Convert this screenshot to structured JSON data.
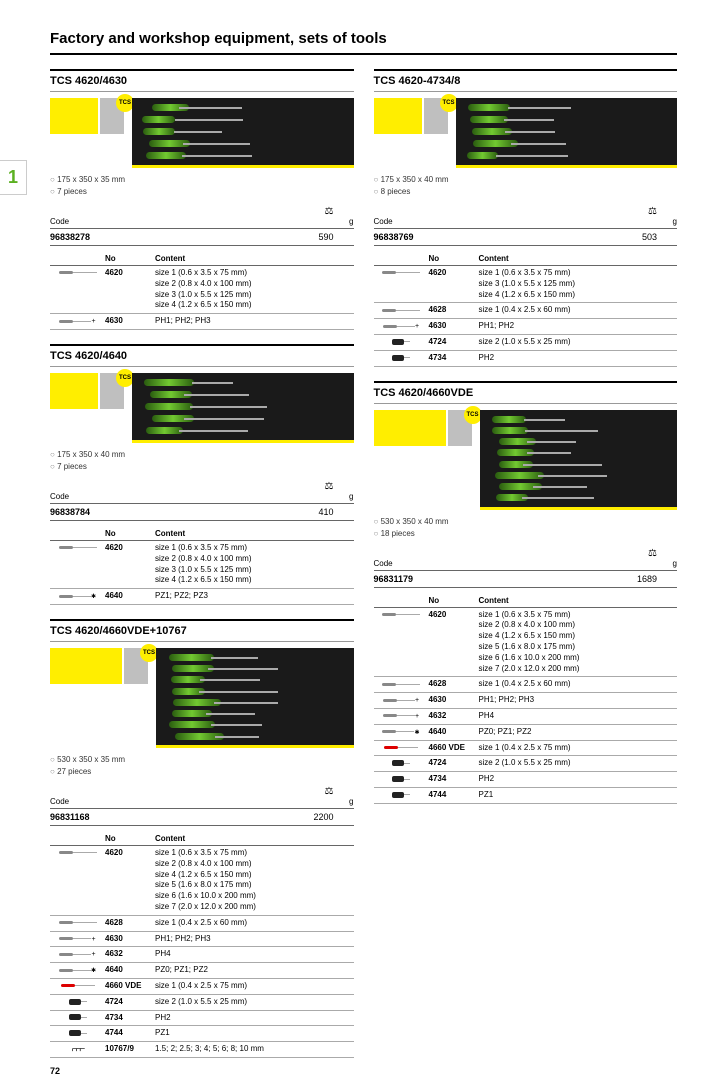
{
  "tab_number": "1",
  "page_number": "72",
  "page_title": "Factory and workshop equipment, sets of tools",
  "label_code": "Code",
  "label_g": "g",
  "label_no": "No",
  "label_content": "Content",
  "tcs_badge": "TCS",
  "colors": {
    "brand": "#ffee00",
    "accent": "#72c931",
    "dark": "#1a1a1a"
  },
  "sections": [
    {
      "col": 0,
      "title": "TCS 4620/4630",
      "yellow_width": 48,
      "specs": [
        "175 x 350 x 35 mm",
        "7 pieces"
      ],
      "code": "96838278",
      "weight": "590",
      "rows": [
        {
          "icon": "flat",
          "no": "4620",
          "content": "size 1 (0.6 x 3.5 x 75 mm)\nsize 2 (0.8 x 4.0 x 100 mm)\nsize 3 (1.0 x 5.5 x 125 mm)\nsize 4 (1.2 x 6.5 x 150 mm)"
        },
        {
          "icon": "ph",
          "no": "4630",
          "content": "PH1; PH2; PH3"
        }
      ]
    },
    {
      "col": 0,
      "title": "TCS 4620/4640",
      "yellow_width": 48,
      "specs": [
        "175 x 350 x 40 mm",
        "7 pieces"
      ],
      "code": "96838784",
      "weight": "410",
      "rows": [
        {
          "icon": "flat",
          "no": "4620",
          "content": "size 1 (0.6 x 3.5 x 75 mm)\nsize 2 (0.8 x 4.0 x 100 mm)\nsize 3 (1.0 x 5.5 x 125 mm)\nsize 4 (1.2 x 6.5 x 150 mm)"
        },
        {
          "icon": "pz",
          "no": "4640",
          "content": "PZ1; PZ2; PZ3"
        }
      ]
    },
    {
      "col": 0,
      "title": "TCS 4620/4660VDE+10767",
      "yellow_width": 72,
      "big": true,
      "specs": [
        "530 x 350 x 35 mm",
        "27 pieces"
      ],
      "code": "96831168",
      "weight": "2200",
      "rows": [
        {
          "icon": "flat",
          "no": "4620",
          "content": "size 1 (0.6 x 3.5 x 75 mm)\nsize 2 (0.8 x 4.0 x 100 mm)\nsize 4 (1.2 x 6.5 x 150 mm)\nsize 5 (1.6 x 8.0 x 175 mm)\nsize 6 (1.6 x 10.0 x 200 mm)\nsize 7 (2.0 x 12.0 x 200 mm)"
        },
        {
          "icon": "flat",
          "no": "4628",
          "content": "size 1 (0.4 x 2.5 x 60 mm)"
        },
        {
          "icon": "ph",
          "no": "4630",
          "content": "PH1; PH2; PH3"
        },
        {
          "icon": "ph",
          "no": "4632",
          "content": "PH4"
        },
        {
          "icon": "pz",
          "no": "4640",
          "content": "PZ0; PZ1; PZ2"
        },
        {
          "icon": "vde",
          "no": "4660 VDE",
          "content": "size 1 (0.4 x 2.5 x 75 mm)"
        },
        {
          "icon": "stub",
          "no": "4724",
          "content": "size 2 (1.0 x 5.5 x 25 mm)"
        },
        {
          "icon": "stub",
          "no": "4734",
          "content": "PH2"
        },
        {
          "icon": "stub",
          "no": "4744",
          "content": "PZ1"
        },
        {
          "icon": "set",
          "no": "10767/9",
          "content": "1.5; 2; 2.5; 3; 4; 5; 6; 8; 10 mm"
        }
      ]
    },
    {
      "col": 1,
      "title": "TCS 4620-4734/8",
      "yellow_width": 48,
      "specs": [
        "175 x 350 x 40 mm",
        "8 pieces"
      ],
      "code": "96838769",
      "weight": "503",
      "rows": [
        {
          "icon": "flat",
          "no": "4620",
          "content": "size 1 (0.6 x 3.5 x 75 mm)\nsize 3 (1.0 x 5.5 x 125 mm)\nsize 4 (1.2 x 6.5 x 150 mm)"
        },
        {
          "icon": "flat",
          "no": "4628",
          "content": "size 1 (0.4 x 2.5 x 60 mm)"
        },
        {
          "icon": "ph",
          "no": "4630",
          "content": "PH1; PH2"
        },
        {
          "icon": "stub",
          "no": "4724",
          "content": "size 2 (1.0 x 5.5 x 25 mm)"
        },
        {
          "icon": "stub",
          "no": "4734",
          "content": "PH2"
        }
      ]
    },
    {
      "col": 1,
      "title": "TCS 4620/4660VDE",
      "yellow_width": 72,
      "big": true,
      "specs": [
        "530 x 350 x 40 mm",
        "18 pieces"
      ],
      "code": "96831179",
      "weight": "1689",
      "rows": [
        {
          "icon": "flat",
          "no": "4620",
          "content": "size 1 (0.6 x 3.5 x 75 mm)\nsize 2 (0.8 x 4.0 x 100 mm)\nsize 4 (1.2 x 6.5 x 150 mm)\nsize 5 (1.6 x 8.0 x 175 mm)\nsize 6 (1.6 x 10.0 x 200 mm)\nsize 7 (2.0 x 12.0 x 200 mm)"
        },
        {
          "icon": "flat",
          "no": "4628",
          "content": "size 1 (0.4 x 2.5 x 60 mm)"
        },
        {
          "icon": "ph",
          "no": "4630",
          "content": "PH1; PH2; PH3"
        },
        {
          "icon": "ph",
          "no": "4632",
          "content": "PH4"
        },
        {
          "icon": "pz",
          "no": "4640",
          "content": "PZ0; PZ1; PZ2"
        },
        {
          "icon": "vde",
          "no": "4660 VDE",
          "content": "size 1 (0.4 x 2.5 x 75 mm)"
        },
        {
          "icon": "stub",
          "no": "4724",
          "content": "size 2 (1.0 x 5.5 x 25 mm)"
        },
        {
          "icon": "stub",
          "no": "4734",
          "content": "PH2"
        },
        {
          "icon": "stub",
          "no": "4744",
          "content": "PZ1"
        }
      ]
    }
  ]
}
